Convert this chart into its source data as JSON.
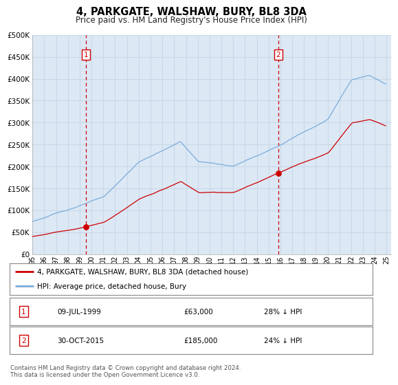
{
  "title": "4, PARKGATE, WALSHAW, BURY, BL8 3DA",
  "subtitle": "Price paid vs. HM Land Registry's House Price Index (HPI)",
  "legend_line1": "4, PARKGATE, WALSHAW, BURY, BL8 3DA (detached house)",
  "legend_line2": "HPI: Average price, detached house, Bury",
  "annotation1_label": "1",
  "annotation1_date": "09-JUL-1999",
  "annotation1_price": "£63,000",
  "annotation1_hpi": "28% ↓ HPI",
  "annotation1_year": 1999.53,
  "annotation1_value": 63000,
  "annotation2_label": "2",
  "annotation2_date": "30-OCT-2015",
  "annotation2_price": "£185,000",
  "annotation2_hpi": "24% ↓ HPI",
  "annotation2_year": 2015.83,
  "annotation2_value": 185000,
  "footer": "Contains HM Land Registry data © Crown copyright and database right 2024.\nThis data is licensed under the Open Government Licence v3.0.",
  "hpi_color": "#7aacdc",
  "price_color": "#cc0000",
  "marker_box_color": "#cc0000",
  "bg_plot": "#dde8f5",
  "grid_color": "#c8d8e8",
  "dashed_line_color": "#cc0000",
  "ylim": [
    0,
    500000
  ],
  "xlim_start": 1995.0,
  "xlim_end": 2025.4
}
